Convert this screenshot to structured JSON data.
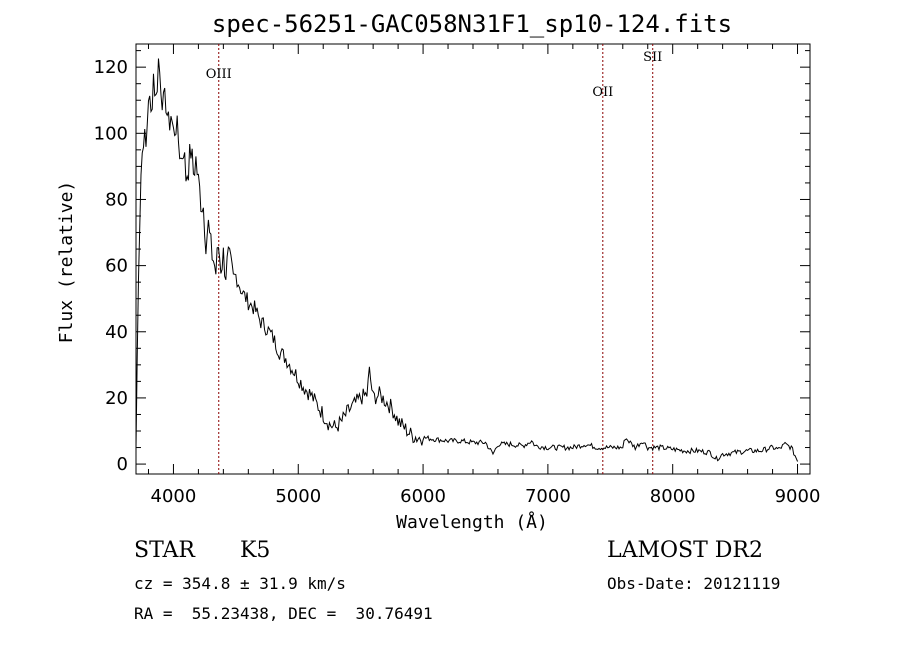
{
  "chart_data": {
    "type": "line",
    "title": "spec-56251-GAC058N31F1_sp10-124.fits",
    "xlabel": "Wavelength (Å)",
    "ylabel": "Flux (relative)",
    "xlim": [
      3700,
      9100
    ],
    "ylim": [
      -3,
      127
    ],
    "x_ticks": [
      4000,
      5000,
      6000,
      7000,
      8000,
      9000
    ],
    "y_ticks": [
      0,
      20,
      40,
      60,
      80,
      100,
      120
    ],
    "series": [
      {
        "x": [
          3700,
          3720,
          3740,
          3760,
          3780,
          3800,
          3820,
          3840,
          3860,
          3880,
          3900,
          3920,
          3940,
          3960,
          3980,
          4000,
          4020,
          4040,
          4060,
          4080,
          4100,
          4120,
          4140,
          4160,
          4180,
          4200,
          4220,
          4240,
          4260,
          4280,
          4300,
          4320,
          4340,
          4360,
          4380,
          4400,
          4420,
          4440,
          4460,
          4480,
          4500,
          4550,
          4600,
          4650,
          4700,
          4750,
          4800,
          4850,
          4900,
          4950,
          5000,
          5050,
          5100,
          5150,
          5200,
          5250,
          5300,
          5350,
          5400,
          5450,
          5500,
          5550,
          5570,
          5600,
          5650,
          5700,
          5750,
          5800,
          5850,
          5900,
          5950,
          6000,
          6100,
          6200,
          6300,
          6400,
          6500,
          6560,
          6600,
          6700,
          6800,
          6870,
          6900,
          7000,
          7100,
          7200,
          7300,
          7400,
          7500,
          7600,
          7620,
          7700,
          7760,
          7800,
          7900,
          8000,
          8100,
          8200,
          8300,
          8350,
          8400,
          8500,
          8600,
          8700,
          8800,
          8850,
          8900,
          8950,
          9000
        ],
        "y": [
          5,
          60,
          88,
          100,
          95,
          112,
          105,
          118,
          110,
          122,
          115,
          108,
          110,
          102,
          106,
          100,
          103,
          98,
          92,
          96,
          87,
          90,
          95,
          88,
          92,
          85,
          80,
          78,
          68,
          72,
          65,
          62,
          58,
          66,
          60,
          63,
          58,
          62,
          59,
          55,
          57,
          52,
          49,
          47,
          43,
          41,
          38,
          34,
          32,
          29,
          26,
          23,
          21,
          18,
          15,
          12,
          11,
          13,
          16,
          18,
          20,
          21,
          28,
          20,
          21,
          19,
          17,
          13,
          11,
          9,
          8,
          8,
          7.5,
          7,
          7,
          6.5,
          6.5,
          3,
          6,
          6,
          5.5,
          7,
          5.5,
          5,
          5,
          5,
          6,
          5,
          5,
          5,
          8,
          5,
          7,
          5,
          5,
          4.5,
          4,
          4,
          3.5,
          1.5,
          3,
          3.5,
          4,
          4,
          5,
          4.5,
          6,
          5,
          1
        ]
      }
    ],
    "reference_lines": [
      {
        "x": 4363,
        "label": "OIII"
      },
      {
        "x": 7440,
        "label": "OII"
      },
      {
        "x": 7840,
        "label": "SII"
      }
    ],
    "grid": false,
    "line_color": "#000000",
    "reference_line_color": "#8b0000"
  },
  "footer": {
    "object_type": "STAR",
    "subclass": "K5",
    "survey": "LAMOST DR2",
    "cz": "cz = 354.8 ± 31.9 km/s",
    "obs_date": "Obs-Date: 20121119",
    "coords": "RA =  55.23438, DEC =  30.76491"
  }
}
